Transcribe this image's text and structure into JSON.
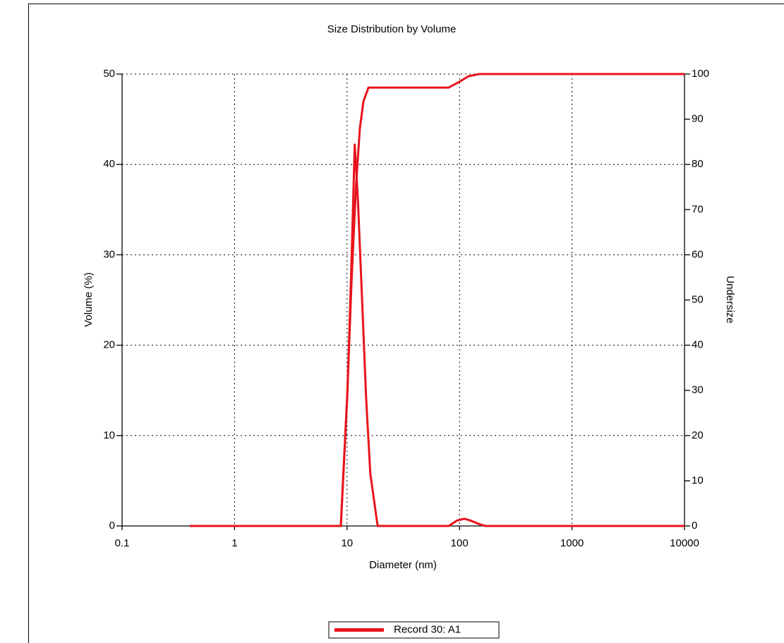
{
  "chart_data": {
    "type": "line",
    "title": "Size Distribution by Volume",
    "x_label": "Diameter (nm)",
    "y_label": "Volume (%)",
    "y2_label": "Undersize",
    "xscale": "log",
    "xlim": [
      0.1,
      10000
    ],
    "xticks": [
      0.1,
      1,
      10,
      100,
      1000,
      10000
    ],
    "ylim": [
      0,
      50
    ],
    "yticks": [
      0,
      10,
      20,
      30,
      40,
      50
    ],
    "y2lim": [
      0,
      100
    ],
    "y2ticks": [
      0,
      10,
      20,
      30,
      40,
      50,
      60,
      70,
      80,
      90,
      100
    ],
    "grid": true,
    "legend": "bottom",
    "series": [
      {
        "name": "Record 30: A1",
        "color": "#e8141c",
        "x": [
          0.4,
          8.8,
          10.1,
          11,
          11.7,
          12.5,
          13.5,
          14.8,
          16.1,
          18.7,
          80,
          95,
          110,
          125,
          150,
          170,
          10000
        ],
        "values": [
          0,
          0,
          15,
          30,
          42.2,
          36,
          26,
          14,
          5.8,
          0,
          0,
          0.6,
          0.8,
          0.6,
          0.2,
          0,
          0
        ]
      },
      {
        "color": "#e8141c",
        "axis": "y2",
        "x": [
          0.4,
          8.8,
          10,
          11,
          12,
          13,
          14,
          15.5,
          80,
          100,
          120,
          150,
          10000
        ],
        "values": [
          0,
          0,
          28,
          55,
          75,
          88,
          94,
          97,
          97,
          98.3,
          99.5,
          100,
          100
        ]
      }
    ]
  }
}
